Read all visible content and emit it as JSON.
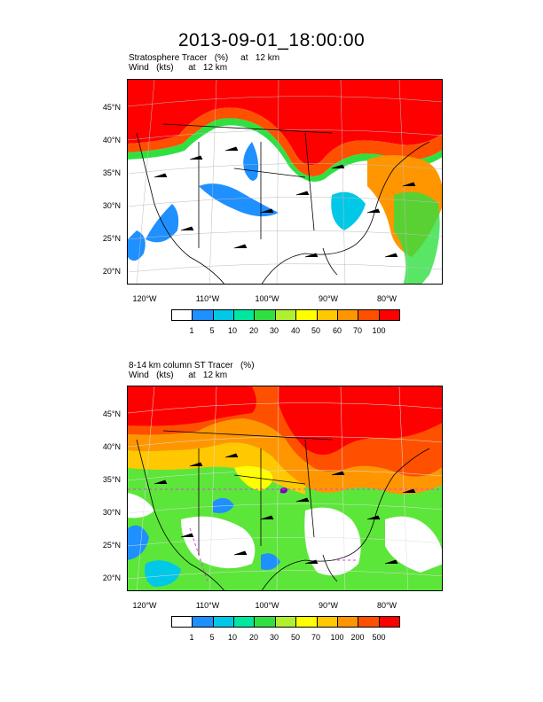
{
  "title": "2013-09-01_18:00:00",
  "panels": [
    {
      "subtitle_line1": "Stratosphere Tracer   (%)     at   12 km",
      "subtitle_line2": "Wind   (kts)      at   12 km",
      "lat_labels": [
        "45°N",
        "40°N",
        "35°N",
        "30°N",
        "25°N",
        "20°N"
      ],
      "lon_labels": [
        "120°W",
        "110°W",
        "100°W",
        "90°W",
        "80°W"
      ],
      "colorbar": {
        "labels": [
          "1",
          "5",
          "10",
          "20",
          "30",
          "40",
          "50",
          "60",
          "70",
          "100"
        ],
        "colors": [
          "#ffffff",
          "#1e90ff",
          "#00c8e6",
          "#00e8a0",
          "#30e040",
          "#b0f030",
          "#ffff00",
          "#ffc800",
          "#ff9600",
          "#ff5000",
          "#ff0000"
        ]
      }
    },
    {
      "subtitle_line1": "8-14 km column ST Tracer   (%)",
      "subtitle_line2": "Wind   (kts)      at   12 km",
      "lat_labels": [
        "45°N",
        "40°N",
        "35°N",
        "30°N",
        "25°N",
        "20°N"
      ],
      "lon_labels": [
        "120°W",
        "110°W",
        "100°W",
        "90°W",
        "80°W"
      ],
      "colorbar": {
        "labels": [
          "1",
          "5",
          "10",
          "20",
          "30",
          "50",
          "70",
          "100",
          "200",
          "500"
        ],
        "colors": [
          "#ffffff",
          "#1e90ff",
          "#00c8e6",
          "#00e8a0",
          "#30e040",
          "#b0f030",
          "#ffff00",
          "#ffc800",
          "#ff9600",
          "#ff5000",
          "#ff0000"
        ]
      }
    }
  ]
}
